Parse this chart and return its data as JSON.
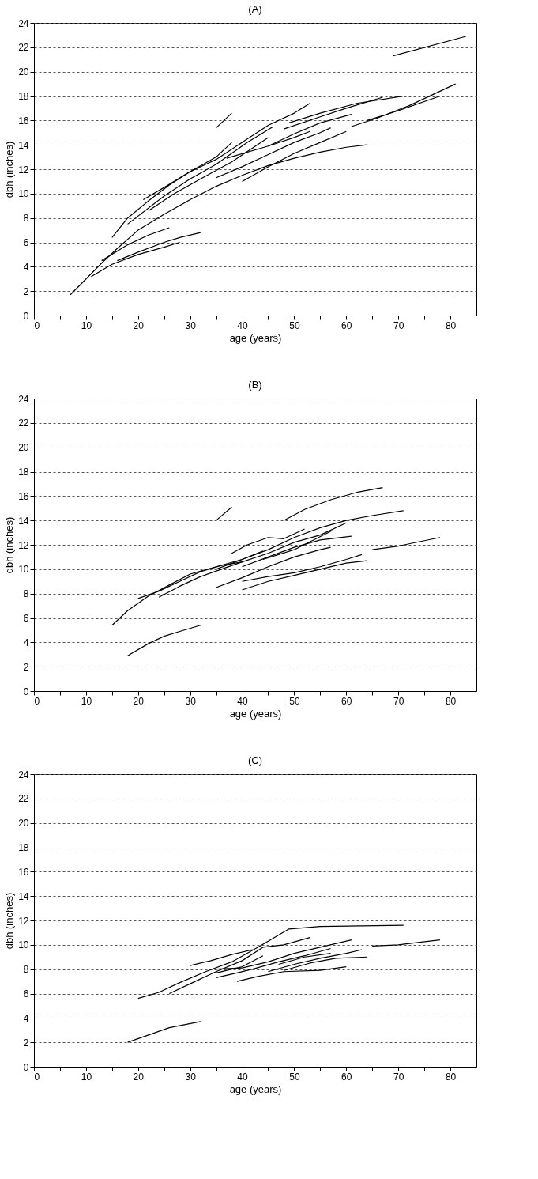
{
  "chart_data": [
    {
      "type": "line",
      "title": "(A)",
      "xlabel": "age (years)",
      "ylabel": "dbh (inches)",
      "xlim": [
        0,
        85
      ],
      "ylim": [
        0,
        24
      ],
      "grid": "y",
      "xticks": [
        0,
        {
          "value": 5,
          "label": null
        },
        10,
        {
          "value": 15,
          "label": null
        },
        20,
        {
          "value": 25,
          "label": null
        },
        30,
        {
          "value": 35,
          "label": null
        },
        40,
        {
          "value": 45,
          "label": null
        },
        50,
        {
          "value": 55,
          "label": null
        },
        60,
        {
          "value": 65,
          "label": null
        },
        70,
        {
          "value": 75,
          "label": null
        },
        80
      ],
      "yticks": [
        0,
        2,
        4,
        6,
        8,
        10,
        12,
        14,
        16,
        18,
        20,
        22,
        24
      ],
      "series": [
        {
          "color": "#000000",
          "x": [
            7,
            10,
            13,
            16,
            20,
            25,
            30,
            35,
            40,
            45,
            50,
            55,
            60,
            64
          ],
          "values": [
            1.7,
            3,
            4.3,
            5.5,
            7,
            8.3,
            9.5,
            10.6,
            11.5,
            12.3,
            12.9,
            13.4,
            13.8,
            14
          ]
        },
        {
          "color": "#000000",
          "x": [
            11,
            15,
            20,
            25,
            28
          ],
          "values": [
            3.2,
            4.2,
            5,
            5.6,
            6
          ]
        },
        {
          "color": "#000000",
          "x": [
            13,
            18,
            22,
            26
          ],
          "values": [
            4.5,
            5.8,
            6.6,
            7.2
          ]
        },
        {
          "color": "#000000",
          "x": [
            16,
            20,
            25,
            28,
            32
          ],
          "values": [
            4.5,
            5.2,
            6,
            6.4,
            6.8
          ]
        },
        {
          "color": "#000000",
          "x": [
            15,
            18,
            22,
            26,
            30,
            35,
            38
          ],
          "values": [
            6.4,
            8,
            9.4,
            10.7,
            11.8,
            13,
            14.2
          ]
        },
        {
          "color": "#000000",
          "x": [
            21,
            25,
            30,
            35,
            40,
            45,
            50,
            53
          ],
          "values": [
            9.5,
            10.5,
            11.8,
            12.8,
            14.2,
            15.6,
            16.6,
            17.4
          ]
        },
        {
          "color": "#000000",
          "x": [
            35,
            38
          ],
          "values": [
            15.4,
            16.6
          ]
        },
        {
          "color": "#000000",
          "x": [
            48,
            55,
            60,
            67
          ],
          "values": [
            15.3,
            16.3,
            17,
            17.9
          ]
        },
        {
          "color": "#000000",
          "x": [
            49,
            55,
            62,
            71
          ],
          "values": [
            15.8,
            16.6,
            17.4,
            18
          ]
        },
        {
          "color": "#000000",
          "x": [
            61,
            66,
            72,
            81
          ],
          "values": [
            15.5,
            16.2,
            17.2,
            19
          ]
        },
        {
          "color": "#000000",
          "x": [
            64,
            70,
            78
          ],
          "values": [
            16,
            16.8,
            18
          ]
        },
        {
          "color": "#000000",
          "x": [
            69,
            83
          ],
          "values": [
            21.3,
            22.9
          ]
        },
        {
          "color": "#000000",
          "x": [
            35,
            40,
            45,
            50,
            55,
            57
          ],
          "values": [
            11.3,
            12.2,
            13.2,
            14.2,
            15,
            15.4
          ]
        },
        {
          "color": "#000000",
          "x": [
            37,
            45,
            50,
            53
          ],
          "values": [
            12.9,
            13.9,
            14.6,
            15.1
          ]
        },
        {
          "color": "#000000",
          "x": [
            40,
            45,
            50,
            55,
            60
          ],
          "values": [
            11,
            12.2,
            13.3,
            14.2,
            15.1
          ]
        },
        {
          "color": "#000000",
          "x": [
            45,
            50,
            55,
            61
          ],
          "values": [
            13.9,
            14.9,
            15.8,
            16.5
          ]
        },
        {
          "color": "#000000",
          "x": [
            22,
            27,
            32,
            38,
            45
          ],
          "values": [
            8.6,
            10,
            11.2,
            12.6,
            14.6
          ]
        },
        {
          "color": "#000000",
          "x": [
            18,
            25,
            30,
            35,
            41,
            46
          ],
          "values": [
            7.5,
            9.8,
            11.2,
            12.4,
            14.2,
            15.5
          ]
        }
      ]
    },
    {
      "type": "line",
      "title": "(B)",
      "xlabel": "age (years)",
      "ylabel": "dbh (inches)",
      "xlim": [
        0,
        85
      ],
      "ylim": [
        0,
        24
      ],
      "grid": "y",
      "xticks": [
        0,
        {
          "value": 5,
          "label": null
        },
        10,
        {
          "value": 15,
          "label": null
        },
        20,
        {
          "value": 25,
          "label": null
        },
        30,
        {
          "value": 35,
          "label": null
        },
        40,
        {
          "value": 45,
          "label": null
        },
        50,
        {
          "value": 55,
          "label": null
        },
        60,
        {
          "value": 65,
          "label": null
        },
        70,
        {
          "value": 75,
          "label": null
        },
        80
      ],
      "yticks": [
        0,
        2,
        4,
        6,
        8,
        10,
        12,
        14,
        16,
        18,
        20,
        22,
        24
      ],
      "series": [
        {
          "color": "#000000",
          "x": [
            15,
            18,
            22,
            26,
            30,
            35,
            40,
            44
          ],
          "values": [
            5.4,
            6.6,
            7.8,
            8.7,
            9.6,
            10.2,
            10.8,
            11.5
          ]
        },
        {
          "color": "#000000",
          "x": [
            18,
            22,
            25,
            28,
            32
          ],
          "values": [
            2.9,
            3.9,
            4.5,
            4.9,
            5.4
          ]
        },
        {
          "color": "#000000",
          "x": [
            35,
            38
          ],
          "values": [
            14,
            15.1
          ]
        },
        {
          "color": "#000000",
          "x": [
            48,
            52,
            57,
            62,
            67
          ],
          "values": [
            14,
            14.9,
            15.7,
            16.3,
            16.7
          ]
        },
        {
          "color": "#000000",
          "x": [
            35,
            40,
            45,
            50,
            55,
            60,
            65,
            71
          ],
          "values": [
            10,
            10.8,
            11.6,
            12.6,
            13.4,
            14,
            14.4,
            14.8
          ]
        },
        {
          "color": "#000000",
          "x": [
            20,
            24,
            28,
            32,
            36,
            40,
            45,
            50,
            55,
            60
          ],
          "values": [
            7.6,
            8.2,
            9,
            9.8,
            10.3,
            10.6,
            11.3,
            12.2,
            12.8,
            13.8
          ]
        },
        {
          "color": "#000000",
          "x": [
            24,
            28,
            32,
            36,
            40
          ],
          "values": [
            7.7,
            8.6,
            9.4,
            10,
            10.6
          ]
        },
        {
          "color": "#000000",
          "x": [
            38,
            41,
            45,
            48,
            52
          ],
          "values": [
            11.3,
            12,
            12.6,
            12.5,
            13.3
          ]
        },
        {
          "color": "#000000",
          "x": [
            35,
            40,
            45,
            50,
            55,
            57
          ],
          "values": [
            8.5,
            9.3,
            10.2,
            11,
            11.6,
            11.8
          ]
        },
        {
          "color": "#000000",
          "x": [
            40,
            45,
            50,
            55,
            60,
            64
          ],
          "values": [
            8.3,
            9,
            9.5,
            10,
            10.5,
            10.7
          ]
        },
        {
          "color": "#000000",
          "x": [
            40,
            45,
            50,
            55,
            60,
            63
          ],
          "values": [
            9,
            9.4,
            9.7,
            10.2,
            10.8,
            11.2
          ]
        },
        {
          "color": "#000000",
          "x": [
            65,
            70,
            78
          ],
          "values": [
            11.6,
            11.9,
            12.6
          ]
        },
        {
          "color": "#000000",
          "x": [
            40,
            45,
            50,
            55,
            61
          ],
          "values": [
            10.2,
            11,
            11.8,
            12.4,
            12.7
          ]
        },
        {
          "color": "#000000",
          "x": [
            44,
            50,
            57
          ],
          "values": [
            10.8,
            11.6,
            13.1
          ]
        }
      ]
    },
    {
      "type": "line",
      "title": "(C)",
      "xlabel": "age (years)",
      "ylabel": "dbh (inches)",
      "xlim": [
        0,
        85
      ],
      "ylim": [
        0,
        24
      ],
      "grid": "y",
      "xticks": [
        0,
        {
          "value": 5,
          "label": null
        },
        10,
        {
          "value": 15,
          "label": null
        },
        20,
        {
          "value": 25,
          "label": null
        },
        30,
        {
          "value": 35,
          "label": null
        },
        40,
        {
          "value": 45,
          "label": null
        },
        50,
        {
          "value": 55,
          "label": null
        },
        60,
        {
          "value": 65,
          "label": null
        },
        70,
        {
          "value": 75,
          "label": null
        },
        80
      ],
      "yticks": [
        0,
        2,
        4,
        6,
        8,
        10,
        12,
        14,
        16,
        18,
        20,
        22,
        24
      ],
      "series": [
        {
          "color": "#000000",
          "x": [
            18,
            22,
            26,
            32
          ],
          "values": [
            2,
            2.6,
            3.2,
            3.7
          ]
        },
        {
          "color": "#000000",
          "x": [
            20,
            24,
            28,
            33,
            38,
            43,
            49,
            55,
            71
          ],
          "values": [
            5.6,
            6.1,
            6.9,
            7.8,
            8.6,
            9.8,
            11.3,
            11.5,
            11.6
          ]
        },
        {
          "color": "#000000",
          "x": [
            26,
            30,
            35,
            40,
            44,
            48,
            53
          ],
          "values": [
            6,
            6.8,
            7.8,
            8.7,
            9.8,
            10,
            10.6
          ]
        },
        {
          "color": "#000000",
          "x": [
            30,
            34,
            38,
            42
          ],
          "values": [
            8.3,
            8.7,
            9.2,
            9.6
          ]
        },
        {
          "color": "#000000",
          "x": [
            35,
            40,
            44
          ],
          "values": [
            7.7,
            8.2,
            9.1
          ]
        },
        {
          "color": "#000000",
          "x": [
            35,
            38,
            42,
            47,
            52,
            57
          ],
          "values": [
            7.3,
            7.6,
            8,
            8.6,
            9.1,
            9.7
          ]
        },
        {
          "color": "#000000",
          "x": [
            35,
            40,
            45,
            50,
            55,
            61
          ],
          "values": [
            8,
            8.1,
            8.6,
            9.3,
            9.8,
            10.4
          ]
        },
        {
          "color": "#000000",
          "x": [
            39,
            43,
            48,
            55,
            60
          ],
          "values": [
            7,
            7.4,
            7.8,
            7.9,
            8.2
          ]
        },
        {
          "color": "#000000",
          "x": [
            45,
            50,
            55,
            60,
            63
          ],
          "values": [
            7.8,
            8.4,
            8.9,
            9.3,
            9.6
          ]
        },
        {
          "color": "#000000",
          "x": [
            48,
            53,
            58,
            64
          ],
          "values": [
            7.9,
            8.5,
            8.9,
            9
          ]
        },
        {
          "color": "#000000",
          "x": [
            65,
            70,
            78
          ],
          "values": [
            9.9,
            10,
            10.4
          ]
        },
        {
          "color": "#000000",
          "x": [
            47,
            52,
            57
          ],
          "values": [
            8.4,
            9,
            9.3
          ]
        }
      ]
    }
  ]
}
